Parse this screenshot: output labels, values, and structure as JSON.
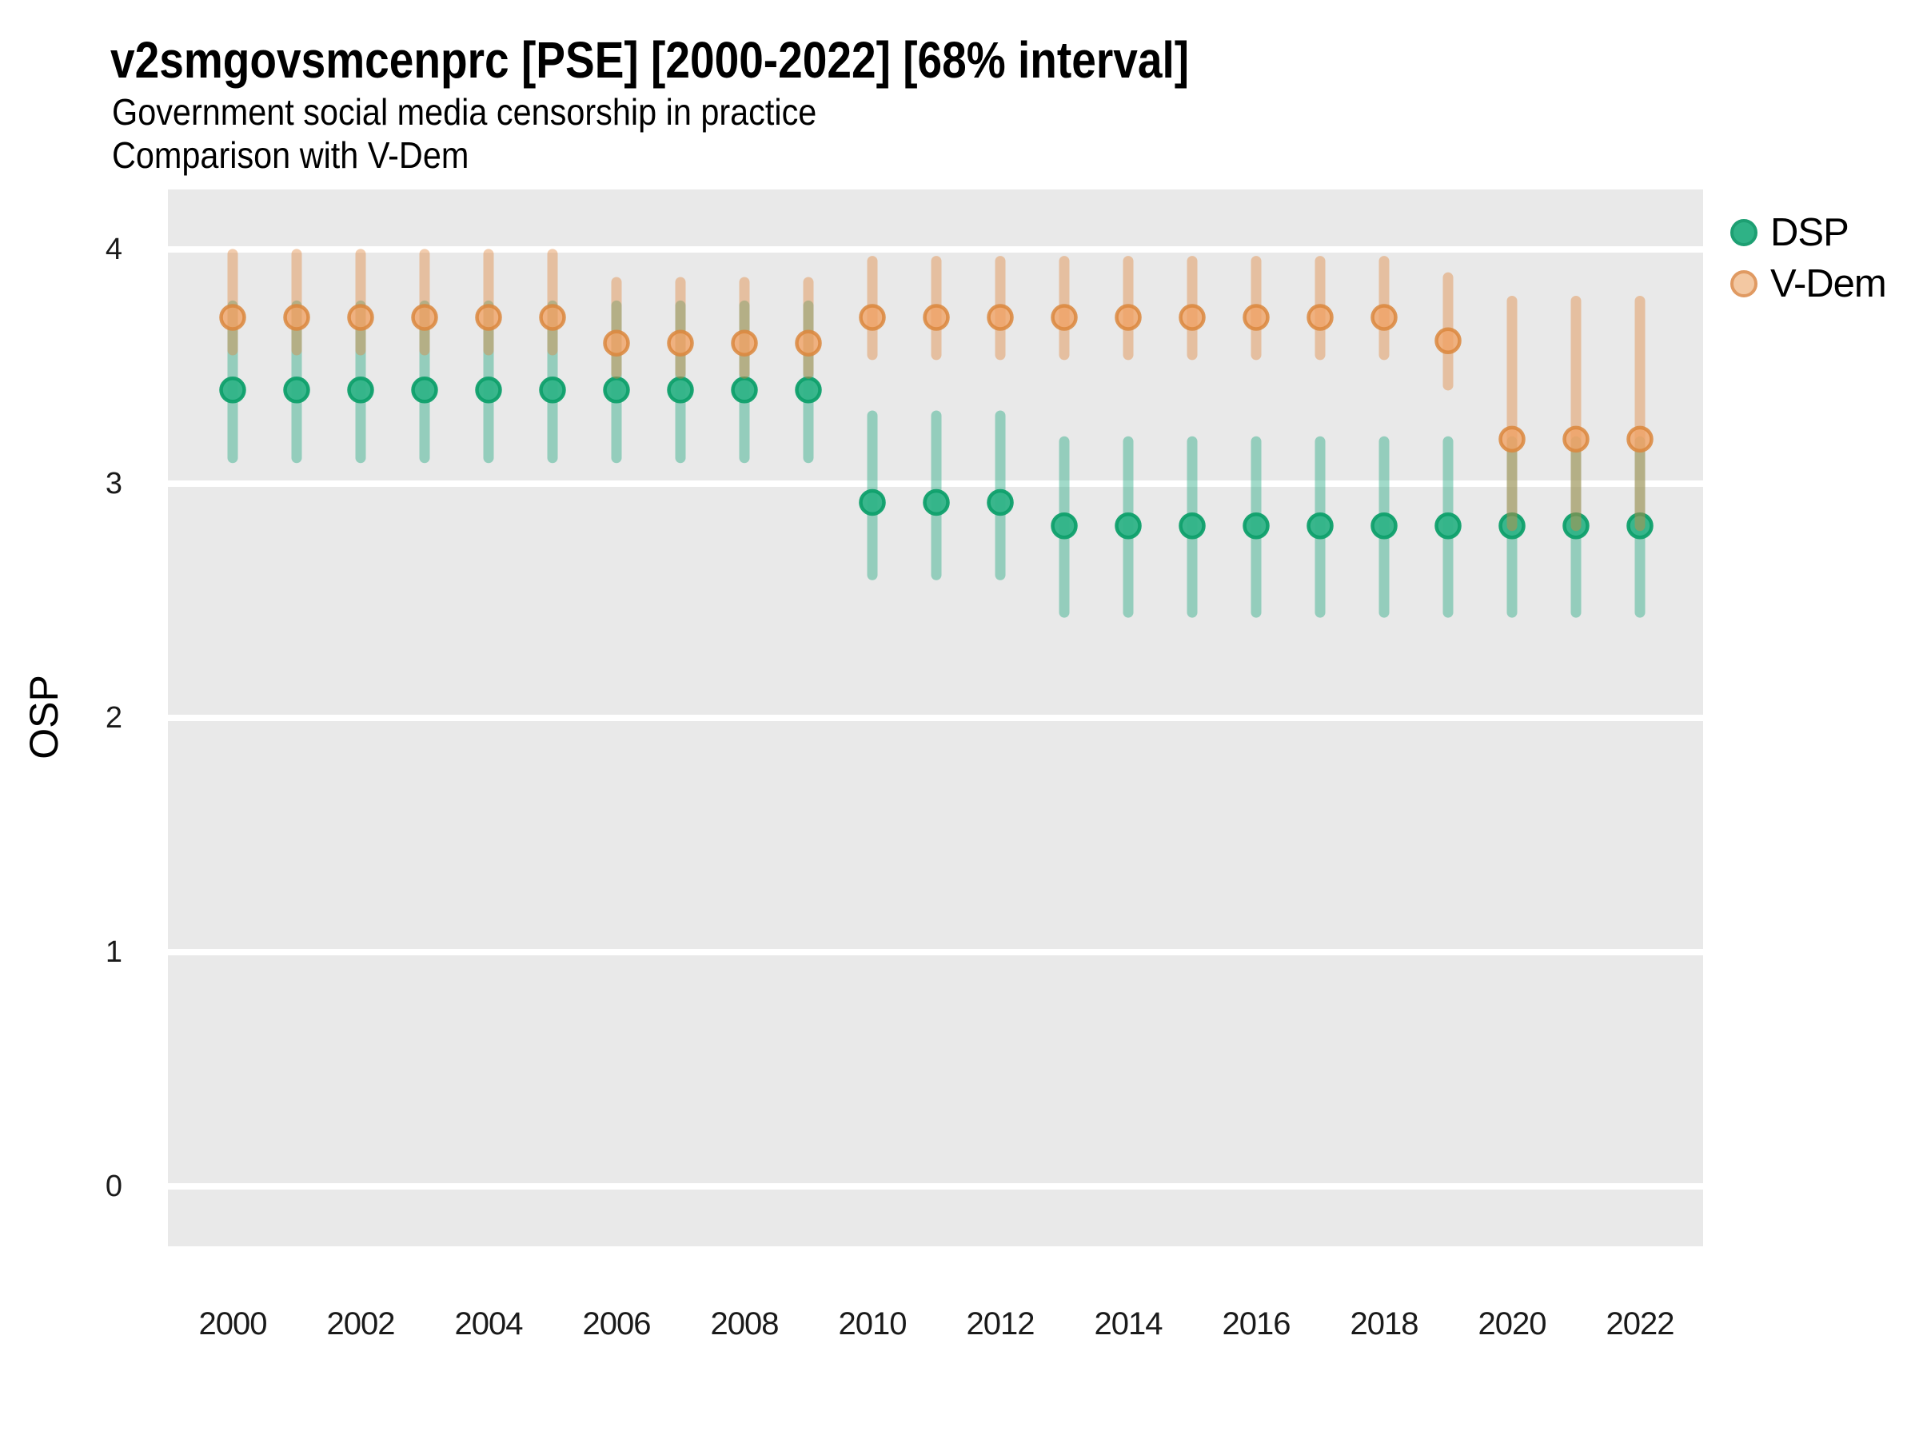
{
  "title": "v2smgovsmcenprc [PSE] [2000-2022] [68% interval]",
  "subtitle1": "Government social media censorship in practice",
  "subtitle2": "Comparison with V-Dem",
  "y_axis": {
    "label": "OSP",
    "ticks": [
      0,
      1,
      2,
      3,
      4
    ]
  },
  "x_axis": {
    "ticks": [
      2000,
      2002,
      2004,
      2006,
      2008,
      2010,
      2012,
      2014,
      2016,
      2018,
      2020,
      2022
    ]
  },
  "legend": {
    "items": [
      {
        "label": "DSP"
      },
      {
        "label": "V-Dem"
      }
    ],
    "position": "right-top"
  },
  "colors": {
    "panel_background": "#E9E9E9",
    "gridline": "#FFFFFF",
    "dsp_interval": "#1FA77E",
    "dsp_point_fill": "#2FB387",
    "dsp_point_stroke": "#0FA06C",
    "vdem_interval": "#E0863C",
    "vdem_point_fill": "#F0A365",
    "vdem_point_stroke": "#DB873D",
    "legend_dsp_fill": "#2FB286",
    "legend_dsp_stroke": "#1D9F72",
    "legend_vdem_fill": "#F3C8A2",
    "legend_vdem_stroke": "#E09A62",
    "text": "#1A1A1A"
  },
  "chart_data": {
    "type": "scatter",
    "variant": "pointrange",
    "title": "v2smgovsmcenprc [PSE] [2000-2022] [68% interval]",
    "subtitle": [
      "Government social media censorship in practice",
      "Comparison with V-Dem"
    ],
    "xlabel": "",
    "ylabel": "OSP",
    "ylim": [
      -0.26,
      4.26
    ],
    "xlim": [
      1999,
      2023
    ],
    "grid": "horizontal-major-white-on-gray",
    "legend_position": "right-top",
    "interval_note": "68% credible interval",
    "x": [
      2000,
      2001,
      2002,
      2003,
      2004,
      2005,
      2006,
      2007,
      2008,
      2009,
      2010,
      2011,
      2012,
      2013,
      2014,
      2015,
      2016,
      2017,
      2018,
      2019,
      2020,
      2021,
      2022
    ],
    "series": [
      {
        "name": "DSP",
        "estimate": [
          3.4,
          3.4,
          3.4,
          3.4,
          3.4,
          3.4,
          3.4,
          3.4,
          3.4,
          3.4,
          2.92,
          2.92,
          2.92,
          2.82,
          2.82,
          2.82,
          2.82,
          2.82,
          2.82,
          2.82,
          2.82,
          2.82,
          2.82
        ],
        "lower": [
          3.11,
          3.11,
          3.11,
          3.11,
          3.11,
          3.11,
          3.11,
          3.11,
          3.11,
          3.11,
          2.61,
          2.61,
          2.61,
          2.45,
          2.45,
          2.45,
          2.45,
          2.45,
          2.45,
          2.45,
          2.45,
          2.45,
          2.45
        ],
        "upper": [
          3.76,
          3.76,
          3.76,
          3.76,
          3.76,
          3.76,
          3.76,
          3.76,
          3.76,
          3.76,
          3.29,
          3.29,
          3.29,
          3.18,
          3.18,
          3.18,
          3.18,
          3.18,
          3.18,
          3.18,
          3.18,
          3.18,
          3.18
        ]
      },
      {
        "name": "V-Dem",
        "estimate": [
          3.71,
          3.71,
          3.71,
          3.71,
          3.71,
          3.71,
          3.6,
          3.6,
          3.6,
          3.6,
          3.71,
          3.71,
          3.71,
          3.71,
          3.71,
          3.71,
          3.71,
          3.71,
          3.71,
          3.61,
          3.19,
          3.19,
          3.19
        ],
        "lower": [
          3.57,
          3.57,
          3.57,
          3.57,
          3.57,
          3.57,
          3.47,
          3.47,
          3.47,
          3.47,
          3.55,
          3.55,
          3.55,
          3.55,
          3.55,
          3.55,
          3.55,
          3.55,
          3.55,
          3.42,
          2.82,
          2.82,
          2.82
        ],
        "upper": [
          3.98,
          3.98,
          3.98,
          3.98,
          3.98,
          3.98,
          3.86,
          3.86,
          3.86,
          3.86,
          3.95,
          3.95,
          3.95,
          3.95,
          3.95,
          3.95,
          3.95,
          3.95,
          3.95,
          3.88,
          3.78,
          3.78,
          3.78
        ]
      }
    ]
  }
}
